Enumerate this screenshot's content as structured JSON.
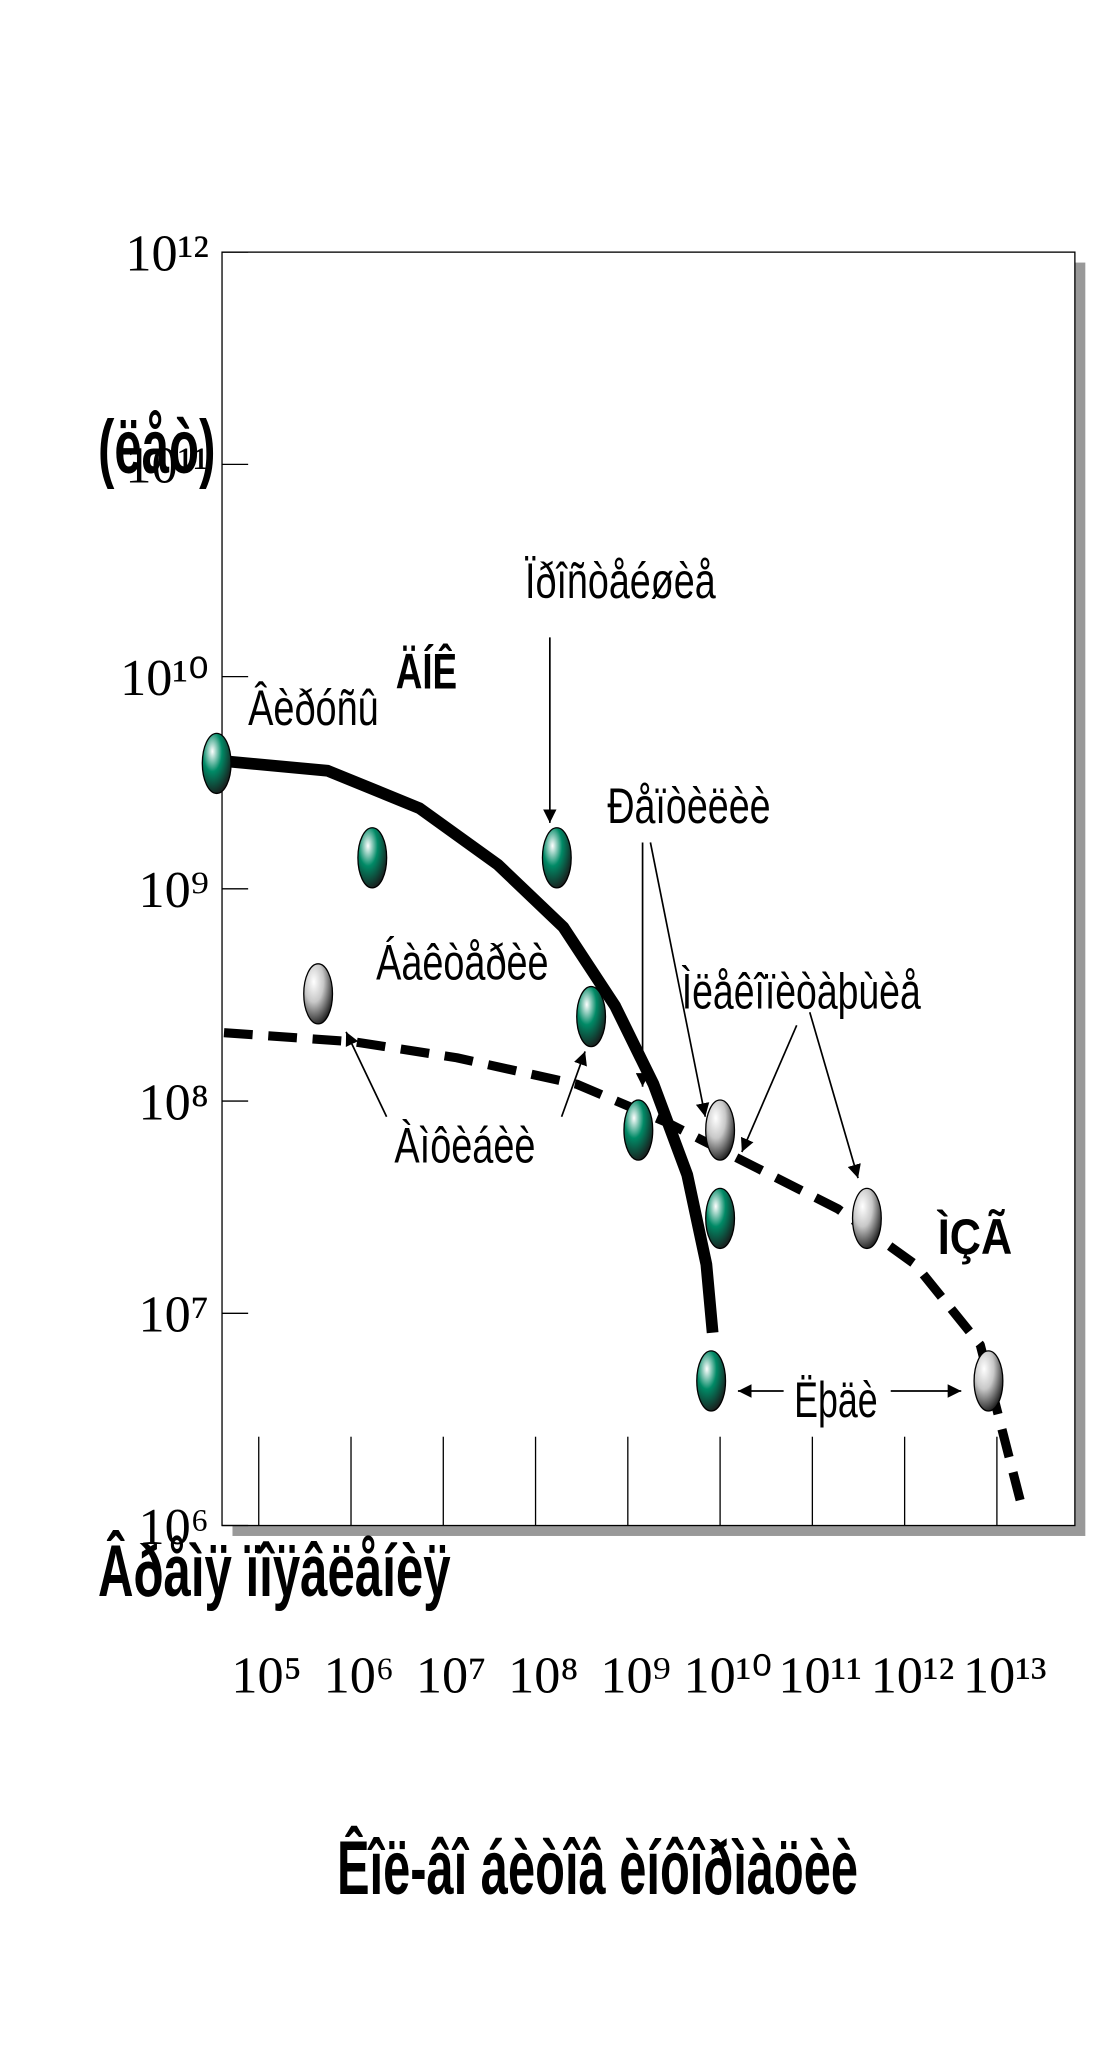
{
  "chart_data": {
    "type": "scatter",
    "xlog": true,
    "ylog": true,
    "xlim": [
      40000,
      70000000000000
    ],
    "ylim": [
      1000000,
      1000000000000
    ],
    "xticks": [
      {
        "value": 100000,
        "label": "10⁵"
      },
      {
        "value": 1000000,
        "label": "10⁶"
      },
      {
        "value": 10000000,
        "label": "10⁷"
      },
      {
        "value": 100000000,
        "label": "10⁸"
      },
      {
        "value": 1000000000,
        "label": "10⁹"
      },
      {
        "value": 10000000000,
        "label": "10¹⁰"
      },
      {
        "value": 100000000000,
        "label": "10¹¹"
      },
      {
        "value": 1000000000000,
        "label": "10¹²"
      },
      {
        "value": 10000000000000,
        "label": "10¹³"
      }
    ],
    "yticks": [
      {
        "value": 1000000,
        "label": "10⁶"
      },
      {
        "value": 10000000,
        "label": "10⁷"
      },
      {
        "value": 100000000,
        "label": "10⁸"
      },
      {
        "value": 1000000000,
        "label": "10⁹"
      },
      {
        "value": 10000000000,
        "label": "10¹⁰"
      },
      {
        "value": 100000000000,
        "label": "10¹¹"
      },
      {
        "value": 1000000000000,
        "label": "10¹²"
      }
    ],
    "xlabel": "Êîë-âî áèòîâ èíôîðìàöèè",
    "ylabel": "(ëåò)",
    "annotations": [
      {
        "text": "Âðåìÿ ïîÿâëåíèÿ"
      },
      {
        "text": "Âèðóñû"
      },
      {
        "text": "Ïðîñòåéøèå"
      },
      {
        "text": "Ðåïòèëèè"
      },
      {
        "text": "Áàêòåðèè"
      },
      {
        "text": "Ìëåêîïèòàþùèå"
      },
      {
        "text": "Àìôèáèè"
      },
      {
        "text": "Ëþäè"
      }
    ],
    "series": [
      {
        "name": "ÄÍÊ",
        "style": "solid",
        "color": "#000000",
        "x": [
          41500,
          560000,
          5500000,
          39000000,
          200000000,
          730000000,
          1900000000,
          4400000000,
          7100000000,
          8300000000
        ],
        "y": [
          4000000000,
          3600000000,
          2400000000,
          1300000000,
          660000000,
          280000000,
          120000000,
          45000000,
          17000000,
          8100000
        ]
      },
      {
        "name": "ÌÇÃ",
        "style": "dashed",
        "color": "#000000",
        "x": [
          42000,
          1100000,
          14000000,
          280000000,
          2700000000,
          26000000000,
          190000000000,
          1300000000000,
          6600000000000,
          18000000000000
        ],
        "y": [
          210000000,
          190000000,
          160000000,
          120000000,
          79000000,
          48000000,
          31000000,
          17000000,
          7100000,
          1300000
        ]
      },
      {
        "style": "marker",
        "color": "#008a66",
        "x": [
          35000,
          1700000,
          170000000,
          400000000,
          1300000000,
          10000000000,
          8000000000
        ],
        "y": [
          3900000000,
          1400000000,
          1400000000,
          250000000,
          73000000,
          28000000,
          4800000
        ]
      },
      {
        "style": "marker",
        "color": "#c8c8c8",
        "x": [
          440000,
          10000000000,
          390000000000,
          8100000000000
        ],
        "y": [
          320000000,
          73000000,
          28000000,
          4800000
        ]
      }
    ]
  }
}
